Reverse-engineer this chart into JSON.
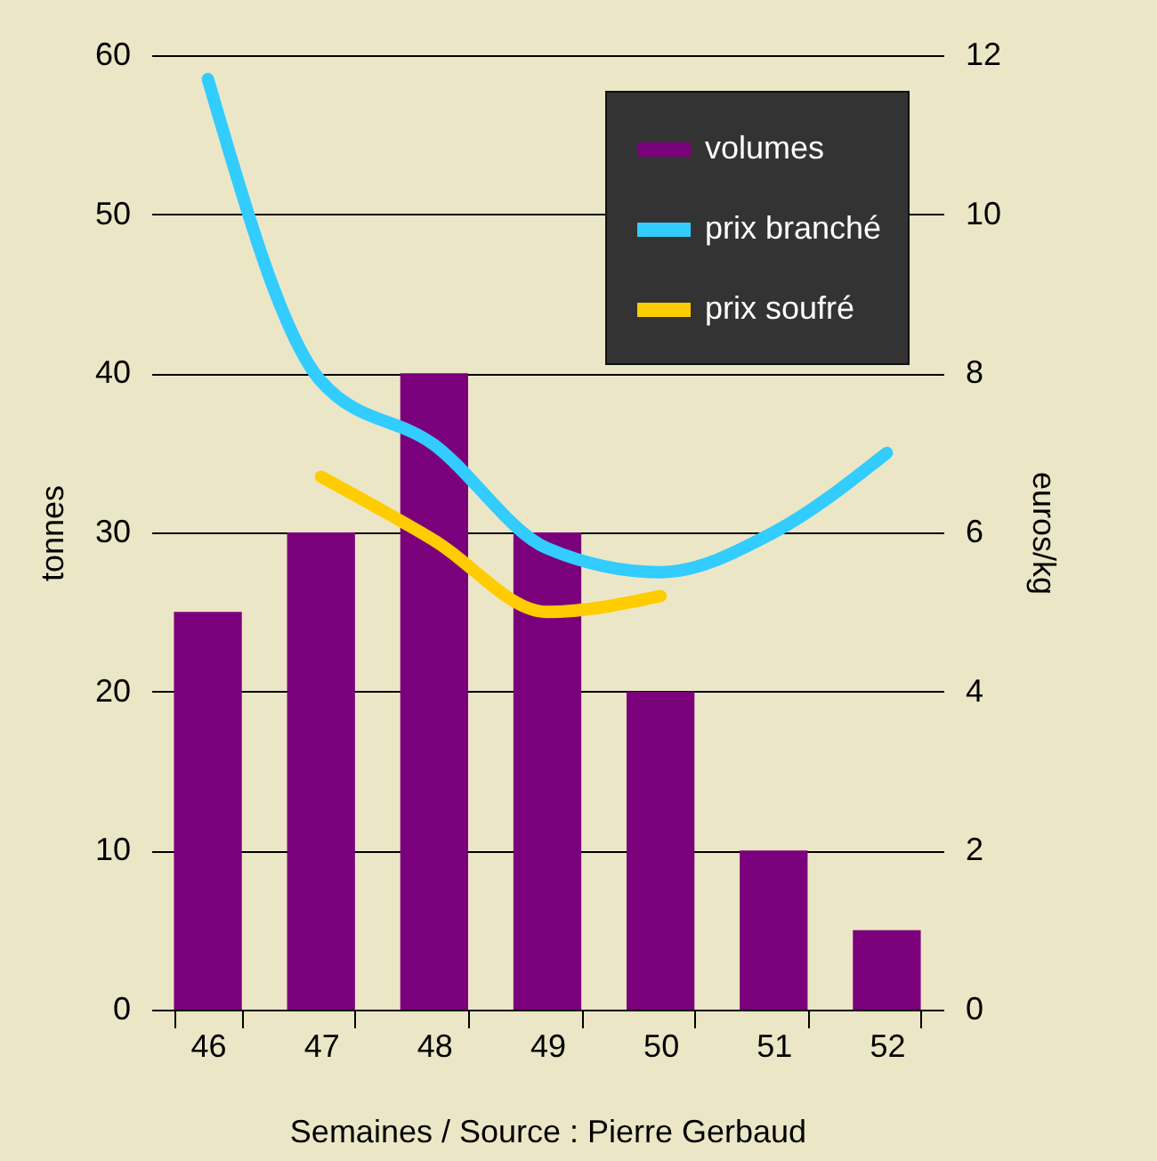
{
  "chart_data": {
    "type": "bar",
    "xlabel": "Semaines / Source : Pierre Gerbaud",
    "ylabel": "tonnes",
    "y2label": "euros/kg",
    "categories": [
      "46",
      "47",
      "48",
      "49",
      "50",
      "51",
      "52"
    ],
    "series": [
      {
        "name": "volumes",
        "color": "#7b007b",
        "values": [
          25,
          30,
          40,
          30,
          20,
          10,
          5
        ]
      },
      {
        "name": "prix branché",
        "type": "line",
        "axis": "y2",
        "color": "#33ccff",
        "values": [
          11.7,
          7.9,
          7.1,
          5.8,
          5.5,
          6.0,
          7.0
        ]
      },
      {
        "name": "prix soufré",
        "type": "line",
        "axis": "y2",
        "color": "#ffcc00",
        "values": [
          null,
          6.7,
          5.9,
          5.0,
          5.2,
          null,
          null
        ]
      }
    ],
    "ylim": [
      0,
      60
    ],
    "yticks": [
      0,
      10,
      20,
      30,
      40,
      50,
      60
    ],
    "y2lim": [
      0,
      12
    ],
    "y2ticks": [
      0,
      2,
      4,
      6,
      8,
      10,
      12
    ],
    "grid": "y",
    "legend": "top right"
  }
}
